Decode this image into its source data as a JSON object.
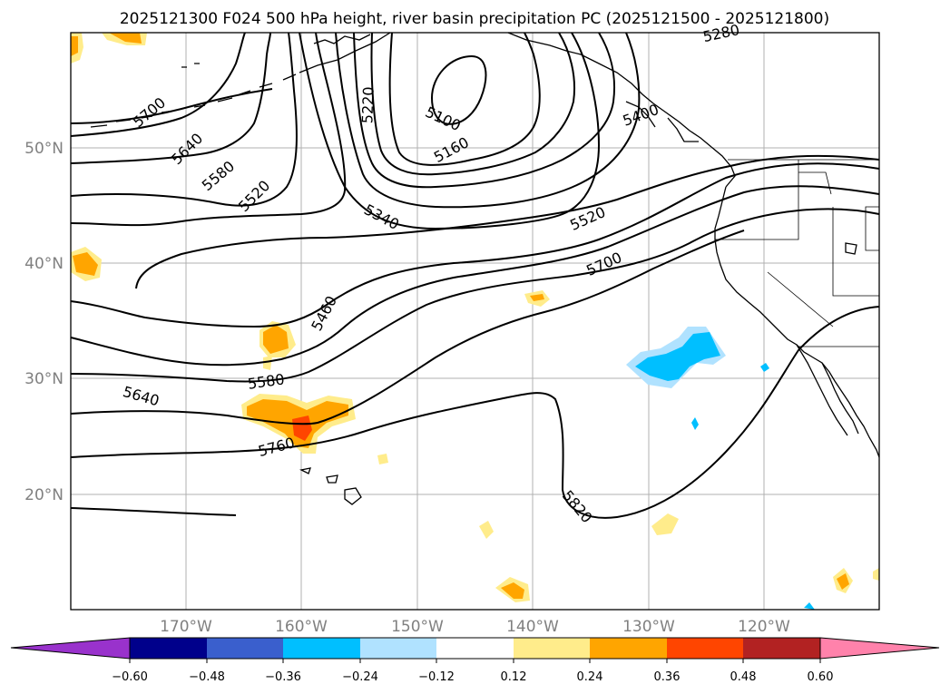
{
  "title": "2025121300 F024 500 hPa height, river basin precipitation PC (2025121500 - 2025121800)",
  "lat_labels": [
    "50°N",
    "40°N",
    "30°N",
    "20°N"
  ],
  "lon_labels": [
    "170°W",
    "160°W",
    "150°W",
    "140°W",
    "130°W",
    "120°W"
  ],
  "contour_labels": [
    "5700",
    "5640",
    "5580",
    "5520",
    "5220",
    "5100",
    "5160",
    "5340",
    "5460",
    "5580",
    "5640",
    "5760",
    "5820",
    "5700",
    "5520",
    "5400",
    "5280"
  ],
  "colorbar": {
    "tick_labels": [
      "−0.60",
      "−0.48",
      "−0.36",
      "−0.24",
      "−0.12",
      "0.12",
      "0.24",
      "0.36",
      "0.48",
      "0.60"
    ],
    "colors": [
      "#9932cc",
      "#00008b",
      "#3a5fcd",
      "#00bfff",
      "#b0e2ff",
      "#ffffff",
      "#ffec8b",
      "#ffa500",
      "#ff4500",
      "#b22222",
      "#ff82ab"
    ]
  }
}
